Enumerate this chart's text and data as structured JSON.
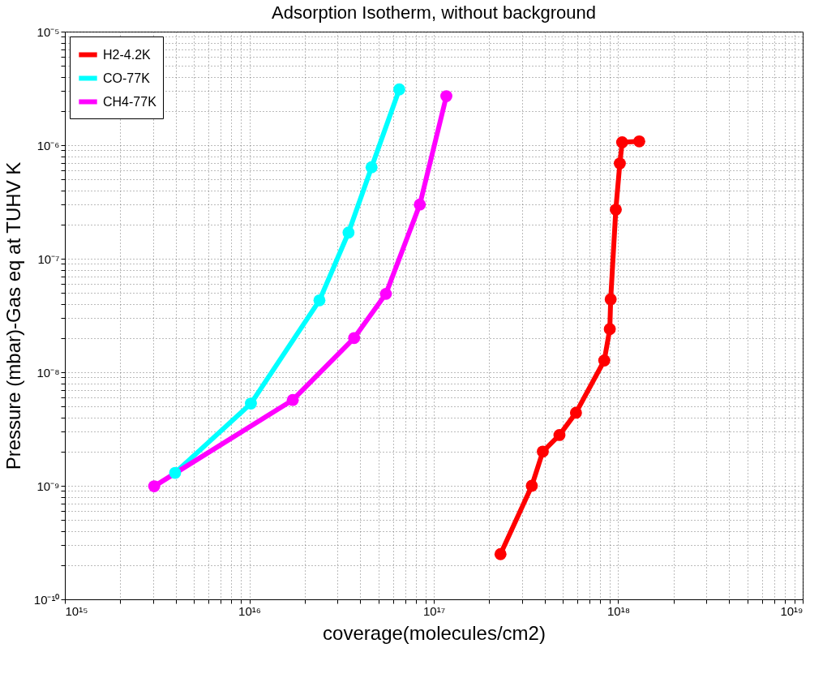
{
  "chart_data": {
    "type": "line",
    "title": "Adsorption Isotherm, without background",
    "xlabel": "coverage(molecules/cm2)",
    "ylabel": "Pressure (mbar)-Gas eq at TUHV K",
    "log": "xy",
    "grid": true,
    "legend": "top left",
    "marker": "circle",
    "line_style": "solid",
    "xlim": [
      1000000000000000.0,
      1e+19
    ],
    "ylim": [
      1e-10,
      1e-05
    ],
    "xticks": [
      {
        "value": 1000000000000000.0,
        "label": "10¹⁵"
      },
      {
        "value": 2000000000000000.0,
        "label": null
      },
      {
        "value": 3000000000000000.0,
        "label": null
      },
      {
        "value": 4000000000000000.0,
        "label": null
      },
      {
        "value": 5000000000000000.0,
        "label": null
      },
      {
        "value": 6000000000000000.0,
        "label": null
      },
      {
        "value": 7000000000000000.0,
        "label": null
      },
      {
        "value": 8000000000000000.0,
        "label": null
      },
      {
        "value": 9000000000000000.0,
        "label": null
      },
      {
        "value": 1e+16,
        "label": "10¹⁶"
      },
      {
        "value": 2e+16,
        "label": null
      },
      {
        "value": 3e+16,
        "label": null
      },
      {
        "value": 4e+16,
        "label": null
      },
      {
        "value": 5e+16,
        "label": null
      },
      {
        "value": 6e+16,
        "label": null
      },
      {
        "value": 7e+16,
        "label": null
      },
      {
        "value": 8e+16,
        "label": null
      },
      {
        "value": 9e+16,
        "label": null
      },
      {
        "value": 1e+17,
        "label": "10¹⁷"
      },
      {
        "value": 2e+17,
        "label": null
      },
      {
        "value": 3e+17,
        "label": null
      },
      {
        "value": 4e+17,
        "label": null
      },
      {
        "value": 5e+17,
        "label": null
      },
      {
        "value": 6e+17,
        "label": null
      },
      {
        "value": 7e+17,
        "label": null
      },
      {
        "value": 8e+17,
        "label": null
      },
      {
        "value": 9e+17,
        "label": null
      },
      {
        "value": 1e+18,
        "label": "10¹⁸"
      },
      {
        "value": 2e+18,
        "label": null
      },
      {
        "value": 3e+18,
        "label": null
      },
      {
        "value": 4e+18,
        "label": null
      },
      {
        "value": 5e+18,
        "label": null
      },
      {
        "value": 6e+18,
        "label": null
      },
      {
        "value": 7e+18,
        "label": null
      },
      {
        "value": 8e+18,
        "label": null
      },
      {
        "value": 9e+18,
        "label": null
      },
      {
        "value": 1e+19,
        "label": "10¹⁹"
      }
    ],
    "yticks": [
      {
        "value": 1e-10,
        "label": "10⁻¹⁰"
      },
      {
        "value": 2e-10,
        "label": null
      },
      {
        "value": 3e-10,
        "label": null
      },
      {
        "value": 4e-10,
        "label": null
      },
      {
        "value": 5e-10,
        "label": null
      },
      {
        "value": 6e-10,
        "label": null
      },
      {
        "value": 7e-10,
        "label": null
      },
      {
        "value": 8e-10,
        "label": null
      },
      {
        "value": 9e-10,
        "label": null
      },
      {
        "value": 1e-09,
        "label": "10⁻⁹"
      },
      {
        "value": 2e-09,
        "label": null
      },
      {
        "value": 3e-09,
        "label": null
      },
      {
        "value": 4e-09,
        "label": null
      },
      {
        "value": 5e-09,
        "label": null
      },
      {
        "value": 6e-09,
        "label": null
      },
      {
        "value": 7e-09,
        "label": null
      },
      {
        "value": 8e-09,
        "label": null
      },
      {
        "value": 9e-09,
        "label": null
      },
      {
        "value": 1e-08,
        "label": "10⁻⁸"
      },
      {
        "value": 2e-08,
        "label": null
      },
      {
        "value": 3e-08,
        "label": null
      },
      {
        "value": 4e-08,
        "label": null
      },
      {
        "value": 5e-08,
        "label": null
      },
      {
        "value": 6e-08,
        "label": null
      },
      {
        "value": 7e-08,
        "label": null
      },
      {
        "value": 8e-08,
        "label": null
      },
      {
        "value": 9e-08,
        "label": null
      },
      {
        "value": 1e-07,
        "label": "10⁻⁷"
      },
      {
        "value": 2e-07,
        "label": null
      },
      {
        "value": 3e-07,
        "label": null
      },
      {
        "value": 4e-07,
        "label": null
      },
      {
        "value": 5e-07,
        "label": null
      },
      {
        "value": 6e-07,
        "label": null
      },
      {
        "value": 7e-07,
        "label": null
      },
      {
        "value": 8e-07,
        "label": null
      },
      {
        "value": 9e-07,
        "label": null
      },
      {
        "value": 1e-06,
        "label": "10⁻⁶"
      },
      {
        "value": 2e-06,
        "label": null
      },
      {
        "value": 3e-06,
        "label": null
      },
      {
        "value": 4e-06,
        "label": null
      },
      {
        "value": 5e-06,
        "label": null
      },
      {
        "value": 6e-06,
        "label": null
      },
      {
        "value": 7e-06,
        "label": null
      },
      {
        "value": 8e-06,
        "label": null
      },
      {
        "value": 9e-06,
        "label": null
      },
      {
        "value": 1e-05,
        "label": "10⁻⁵"
      }
    ],
    "series": [
      {
        "name": "H2-4.2K",
        "color": "#ff0000",
        "x": [
          2.3e+17,
          3.4e+17,
          3.9e+17,
          4.8e+17,
          5.9e+17,
          8.4e+17,
          9e+17,
          9.1e+17,
          9.7e+17,
          1.02e+18,
          1.05e+18,
          1.3e+18
        ],
        "values": [
          2.5e-10,
          1e-09,
          2e-09,
          2.8e-09,
          4.4e-09,
          1.27e-08,
          2.4e-08,
          4.4e-08,
          2.7e-07,
          6.9e-07,
          1.06e-06,
          1.08e-06
        ]
      },
      {
        "name": "CO-77K",
        "color": "#00ffff",
        "x": [
          3960000000000000.0,
          1.02e+16,
          2.4e+16,
          3.45e+16,
          4.6e+16,
          6.5e+16
        ],
        "values": [
          1.3e-09,
          5.3e-09,
          4.3e-08,
          1.7e-07,
          6.4e-07,
          3.1e-06
        ]
      },
      {
        "name": "CH4-77K",
        "color": "#ff00ff",
        "x": [
          3050000000000000.0,
          1.72e+16,
          3.7e+16,
          5.5e+16,
          8.4e+16,
          1.17e+17
        ],
        "values": [
          9.9e-10,
          5.7e-09,
          2e-08,
          4.9e-08,
          3e-07,
          2.7e-06
        ]
      }
    ]
  }
}
